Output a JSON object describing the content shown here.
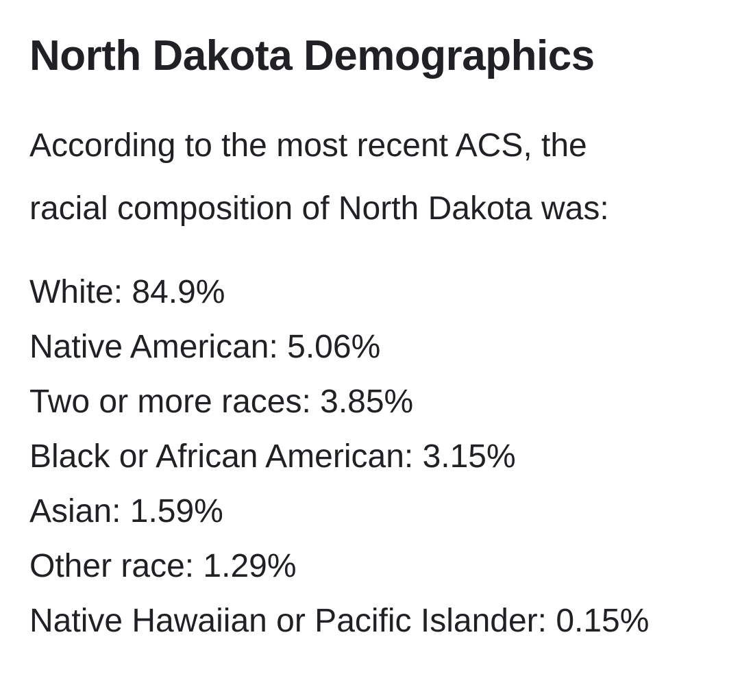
{
  "page": {
    "title": "North Dakota Demographics",
    "intro": "According to the most recent ACS, the racial composition of North Dakota was:",
    "demographics": {
      "items": [
        {
          "label": "White",
          "value": "84.9%",
          "text": "White: 84.9%"
        },
        {
          "label": "Native American",
          "value": "5.06%",
          "text": "Native American: 5.06%"
        },
        {
          "label": "Two or more races",
          "value": "3.85%",
          "text": "Two or more races: 3.85%"
        },
        {
          "label": "Black or African American",
          "value": "3.15%",
          "text": "Black or African American: 3.15%"
        },
        {
          "label": "Asian",
          "value": "1.59%",
          "text": "Asian: 1.59%"
        },
        {
          "label": "Other race",
          "value": "1.29%",
          "text": "Other race: 1.29%"
        },
        {
          "label": "Native Hawaiian or Pacific Islander",
          "value": "0.15%",
          "text": "Native Hawaiian or Pacific Islander: 0.15%"
        }
      ]
    },
    "colors": {
      "text": "#202124",
      "background": "#ffffff"
    }
  }
}
